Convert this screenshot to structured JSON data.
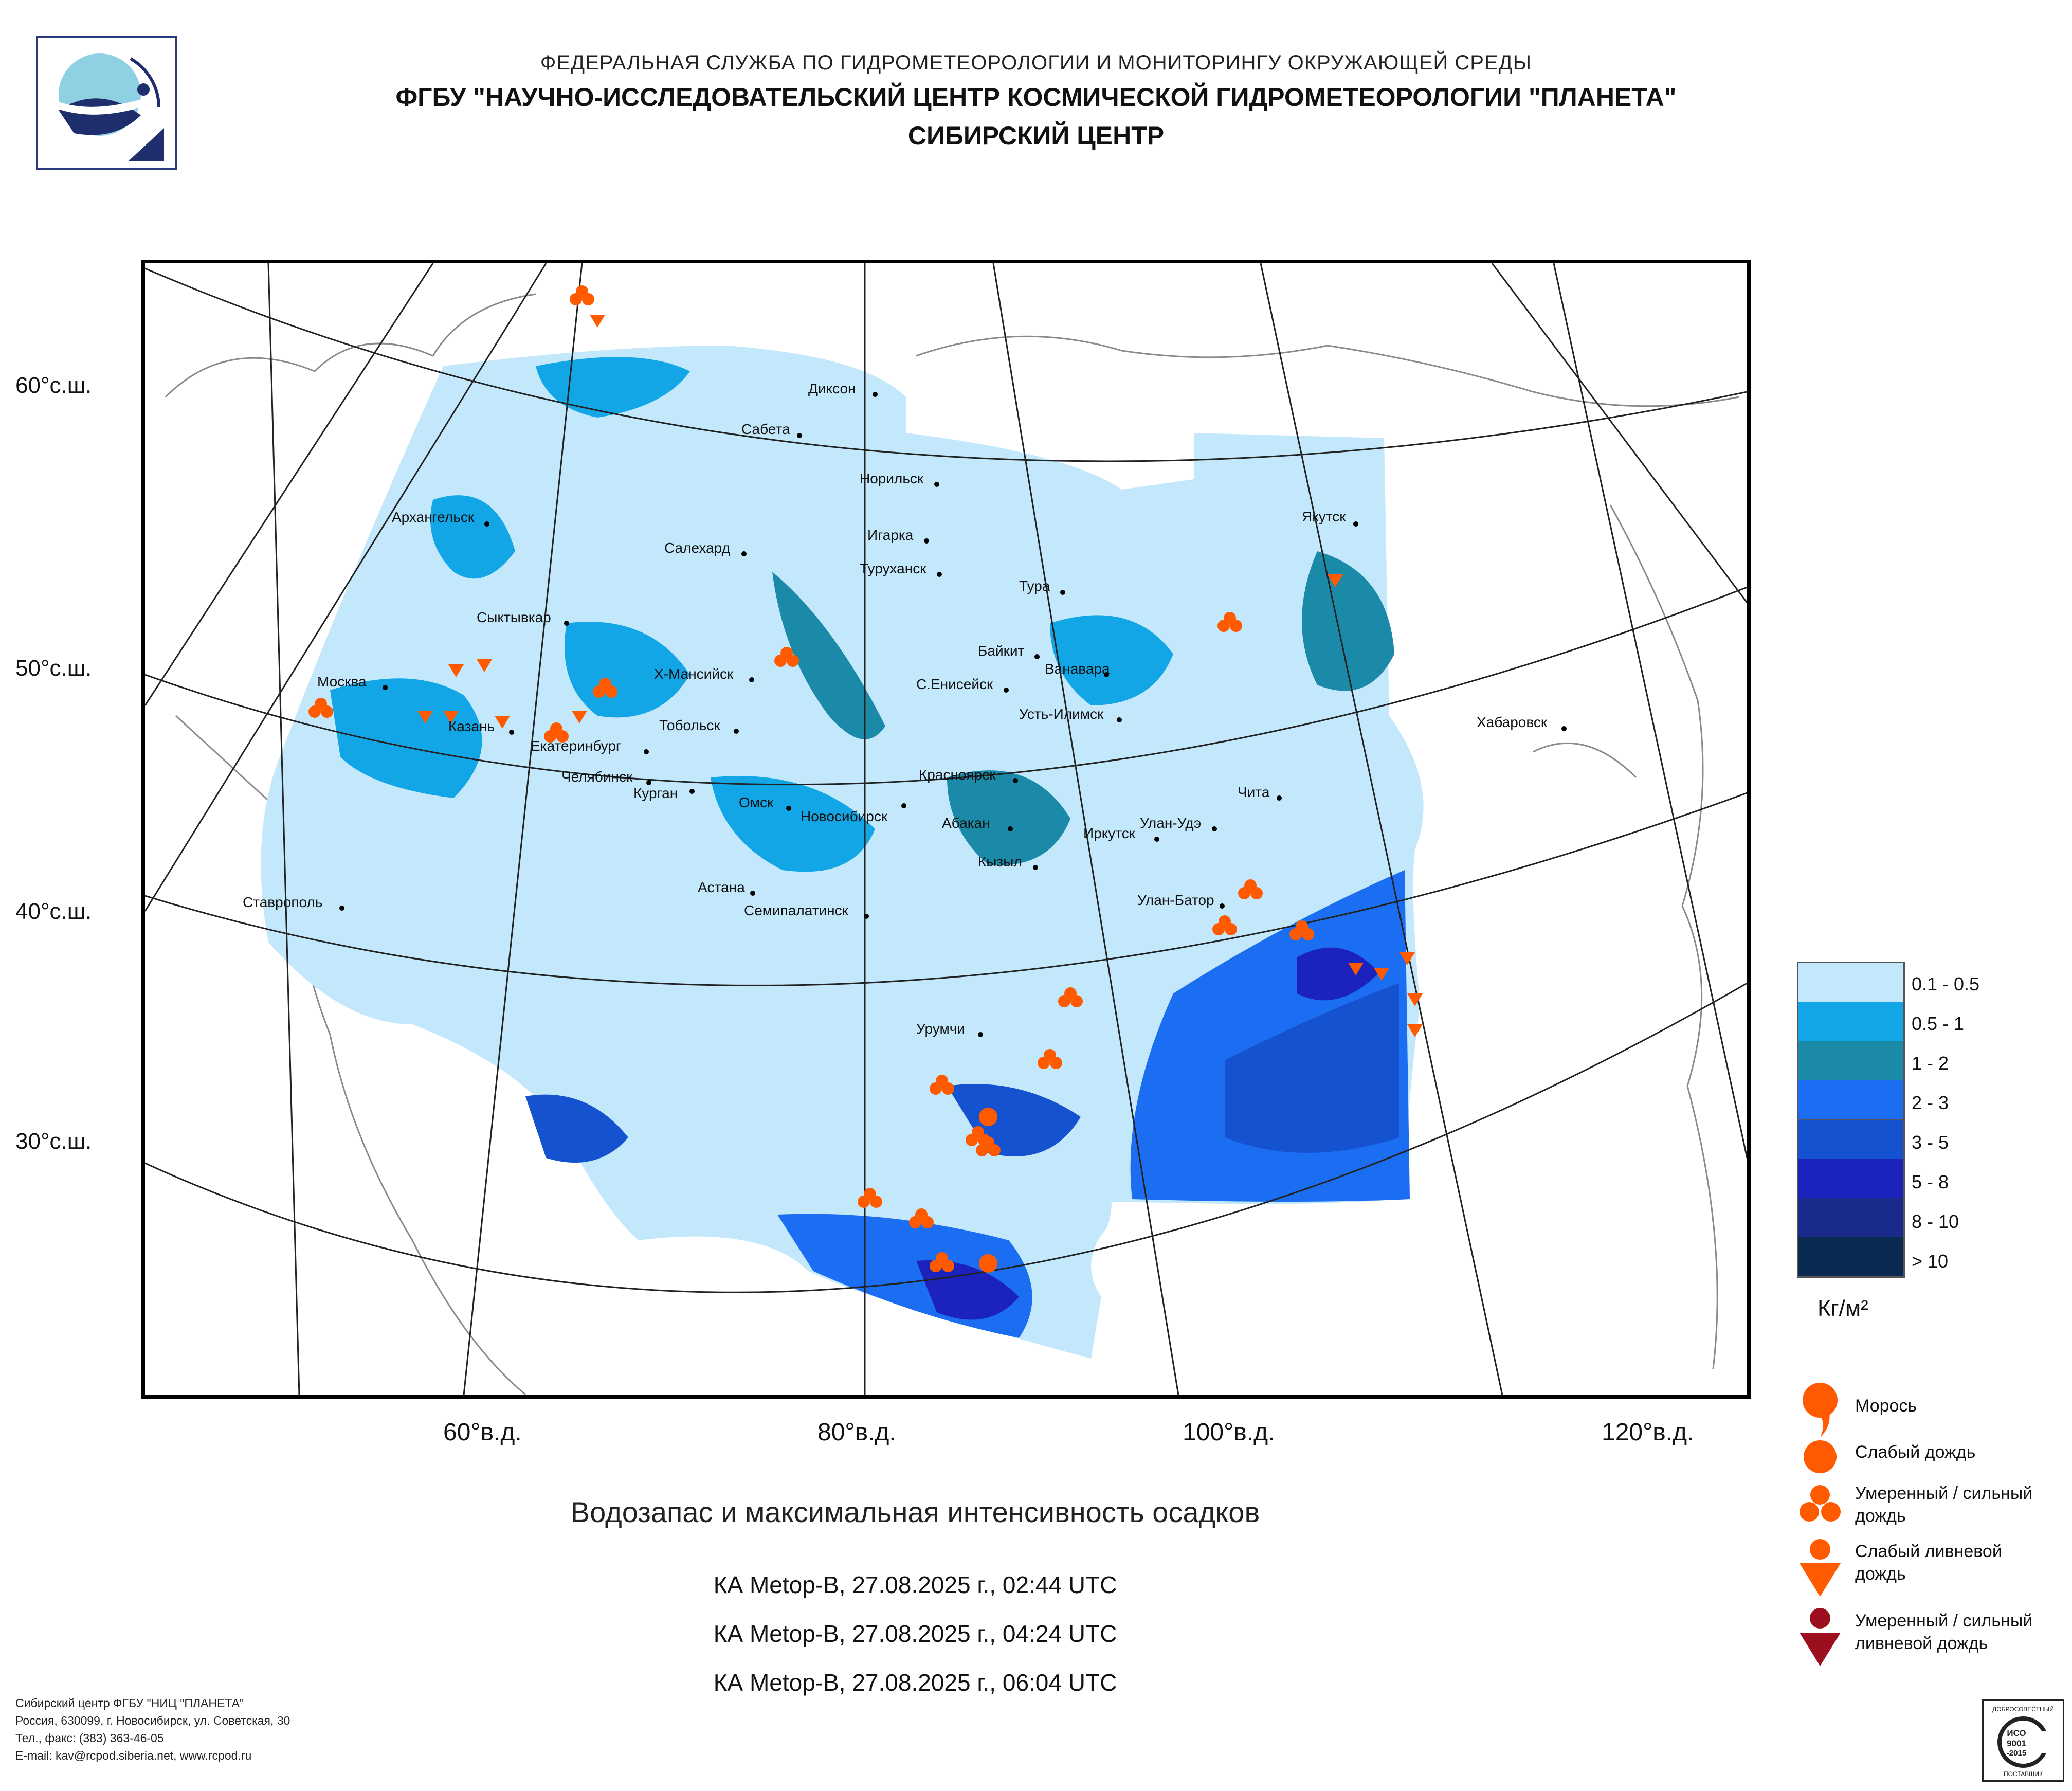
{
  "header": {
    "line1": "ФЕДЕРАЛЬНАЯ СЛУЖБА ПО ГИДРОМЕТЕОРОЛОГИИ И МОНИТОРИНГУ ОКРУЖАЮЩЕЙ СРЕДЫ",
    "line2": "ФГБУ \"НАУЧНО-ИССЛЕДОВАТЕЛЬСКИЙ ЦЕНТР КОСМИЧЕСКОЙ ГИДРОМЕТЕОРОЛОГИИ \"ПЛАНЕТА\"",
    "line3": "СИБИРСКИЙ ЦЕНТР"
  },
  "map": {
    "latitude_labels": [
      "60°с.ш.",
      "50°с.ш.",
      "40°с.ш.",
      "30°с.ш."
    ],
    "longitude_labels": [
      "60°в.д.",
      "80°в.д.",
      "100°в.д.",
      "120°в.д."
    ],
    "cities": [
      "Диксон",
      "Сабета",
      "Норильск",
      "Игарка",
      "Туруханск",
      "Салехард",
      "Архангельск",
      "Якутск",
      "Тура",
      "Байкит",
      "Ванавара",
      "С.Енисейск",
      "Усть-Илимск",
      "Хабаровск",
      "Сыктывкар",
      "Москва",
      "Х-Мансийск",
      "Тобольск",
      "Казань",
      "Екатеринбург",
      "Челябинск",
      "Курган",
      "Омск",
      "Новосибирск",
      "Красноярск",
      "Абакан",
      "Чита",
      "Улан-Удэ",
      "Иркутск",
      "Кызыл",
      "Астана",
      "Семипалатинск",
      "Улан-Батор",
      "Ставрополь",
      "Урумчи"
    ],
    "colors": {
      "background": "#ffffff",
      "land_outline": "#8a8a8a",
      "graticule": "#222222",
      "symbol_orange": "#ff5a00",
      "symbol_dark_red": "#9b0f1f"
    }
  },
  "legend": {
    "scale": [
      {
        "label": "0.1 - 0.5",
        "color": "#c4e8fb"
      },
      {
        "label": "0.5 - 1",
        "color": "#12a6e6"
      },
      {
        "label": "1 - 2",
        "color": "#1a8aa8"
      },
      {
        "label": "2 - 3",
        "color": "#1b6ef2"
      },
      {
        "label": "3 - 5",
        "color": "#1552d0"
      },
      {
        "label": "5 - 8",
        "color": "#1c22bc"
      },
      {
        "label": "8 - 10",
        "color": "#1a2a8a"
      },
      {
        "label": "> 10",
        "color": "#0a2a52"
      }
    ],
    "unit": "Кг/м²",
    "symbols": [
      {
        "label": "Морось",
        "icon": "drizzle-icon",
        "color": "#ff5a00"
      },
      {
        "label": "Слабый дождь",
        "icon": "light-rain-icon",
        "color": "#ff5a00"
      },
      {
        "label": "Умеренный / сильный дождь",
        "icon": "moderate-rain-icon",
        "color": "#ff5a00"
      },
      {
        "label": "Слабый ливневой дождь",
        "icon": "light-shower-icon",
        "color": "#ff5a00"
      },
      {
        "label": "Умеренный / сильный ливневой дождь",
        "icon": "heavy-shower-icon",
        "color": "#9b0f1f"
      }
    ]
  },
  "caption": {
    "title": "Водозапас и максимальная интенсивность осадков",
    "passes": [
      "КА Metop-B, 27.08.2025 г., 02:44 UTC",
      "КА Metop-B, 27.08.2025 г., 04:24 UTC",
      "КА Metop-B, 27.08.2025 г., 06:04 UTC"
    ]
  },
  "footer": {
    "line1": "Сибирский центр ФГБУ \"НИЦ \"ПЛАНЕТА\"",
    "line2": "Россия, 630099, г. Новосибирск, ул. Советская, 30",
    "line3": "Тел., факс: (383) 363-46-05",
    "line4": "E-mail: kav@rcpod.siberia.net, www.rcpod.ru"
  },
  "certificate": {
    "top": "ДОБРОСОВЕСТНЫЙ",
    "iso": "ИСО",
    "num": "9001",
    "year": "-2015",
    "bottom": "ПОСТАВЩИК"
  }
}
